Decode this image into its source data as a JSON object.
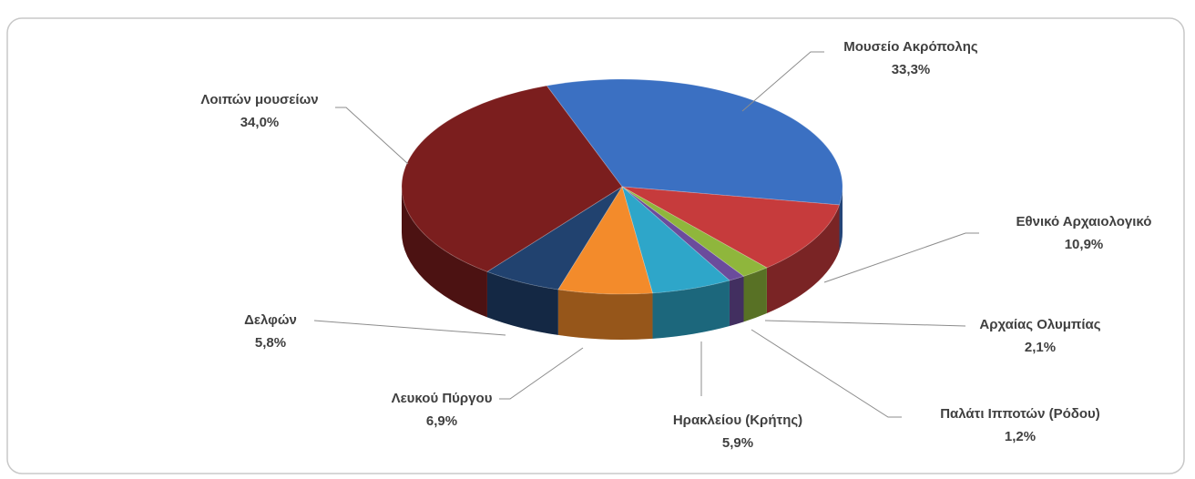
{
  "chart_data": {
    "type": "pie3d",
    "categories": [
      "Μουσείο Ακρόπολης",
      "Εθνικό Αρχαιολογικό",
      "Αρχαίας Ολυμπίας",
      "Παλάτι Ιπποτών (Ρόδου)",
      "Ηρακλείου  (Κρήτης)",
      "Λευκού Πύργου",
      "Δελφών",
      "Λοιπών μουσείων"
    ],
    "values": [
      33.3,
      10.9,
      2.1,
      1.2,
      5.9,
      6.9,
      5.8,
      34.0
    ],
    "value_labels": [
      "33,3%",
      "10,9%",
      "2,1%",
      "1,2%",
      "5,9%",
      "6,9%",
      "5,8%",
      "34,0%"
    ],
    "colors": [
      "#3b70c2",
      "#c63b3c",
      "#8fb63c",
      "#6b4c9c",
      "#2ea6c9",
      "#f38b2b",
      "#21426f",
      "#7b1e1e"
    ]
  }
}
